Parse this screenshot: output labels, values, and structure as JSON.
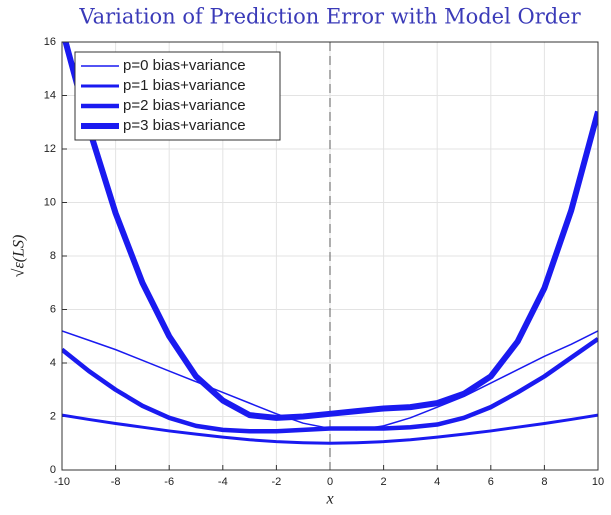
{
  "chart_data": {
    "type": "line",
    "title": "Variation of Prediction Error with Model Order",
    "xlabel": "x",
    "ylabel": "√ε(LS)",
    "x": [
      -10,
      -9,
      -8,
      -7,
      -6,
      -5,
      -4,
      -3,
      -2,
      -1,
      0,
      1,
      2,
      3,
      4,
      5,
      6,
      7,
      8,
      9,
      10
    ],
    "series": [
      {
        "name": "p=0 bias+variance",
        "color": "#1a1af0",
        "width": 1.5,
        "values": [
          5.2,
          4.85,
          4.5,
          4.1,
          3.7,
          3.3,
          2.9,
          2.5,
          2.1,
          1.75,
          1.55,
          1.5,
          1.65,
          1.95,
          2.35,
          2.75,
          3.25,
          3.75,
          4.25,
          4.7,
          5.2
        ]
      },
      {
        "name": "p=1 bias+variance",
        "color": "#1a1af0",
        "width": 3,
        "values": [
          2.05,
          1.89,
          1.74,
          1.6,
          1.46,
          1.34,
          1.23,
          1.13,
          1.06,
          1.02,
          1.0,
          1.02,
          1.06,
          1.13,
          1.23,
          1.34,
          1.46,
          1.6,
          1.74,
          1.89,
          2.05
        ]
      },
      {
        "name": "p=2 bias+variance",
        "color": "#1a1af0",
        "width": 4.5,
        "values": [
          4.5,
          3.7,
          3.0,
          2.4,
          1.95,
          1.65,
          1.5,
          1.45,
          1.45,
          1.5,
          1.55,
          1.55,
          1.55,
          1.6,
          1.7,
          1.95,
          2.35,
          2.9,
          3.5,
          4.2,
          4.9
        ]
      },
      {
        "name": "p=3 bias+variance",
        "color": "#1a1af0",
        "width": 6,
        "values": [
          16.5,
          12.8,
          9.6,
          7.0,
          5.0,
          3.5,
          2.6,
          2.05,
          1.95,
          2.0,
          2.1,
          2.2,
          2.3,
          2.35,
          2.5,
          2.85,
          3.5,
          4.8,
          6.8,
          9.7,
          13.4
        ]
      }
    ],
    "xlim": [
      -10,
      10
    ],
    "xticks": [
      -10,
      -8,
      -6,
      -4,
      -2,
      0,
      2,
      4,
      6,
      8,
      10
    ],
    "ylim": [
      0,
      16
    ],
    "yticks": [
      0,
      2,
      4,
      6,
      8,
      10,
      12,
      14,
      16
    ],
    "grid": true,
    "legend": "top-left"
  }
}
